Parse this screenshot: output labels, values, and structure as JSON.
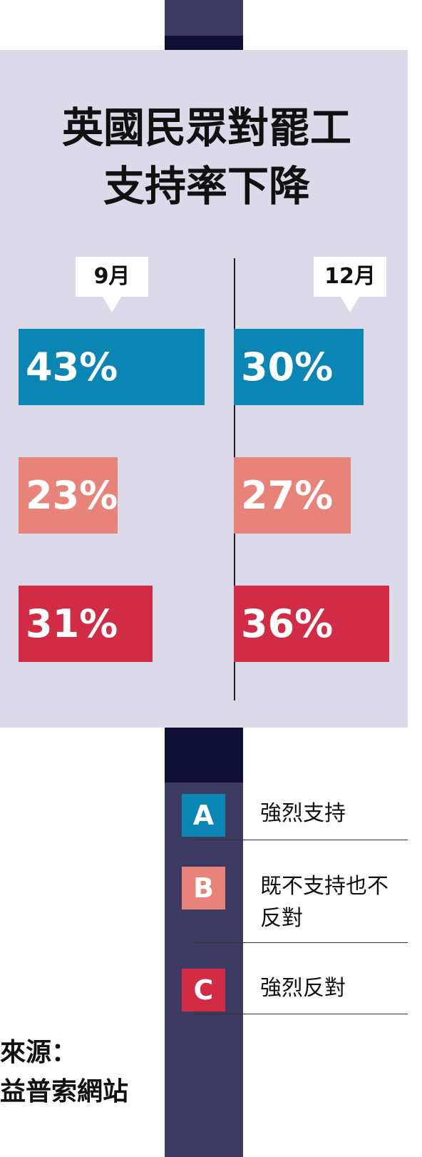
{
  "chart_data": {
    "type": "bar",
    "title": [
      "英國民眾對罷工",
      "支持率下降"
    ],
    "groups": [
      "9月",
      "12月"
    ],
    "series": [
      {
        "name": "強烈支持",
        "letter": "A",
        "color": "#0a86b4",
        "values": [
          43,
          30
        ],
        "value_labels": [
          "43%",
          "30%"
        ]
      },
      {
        "name": "既不支持也不反對",
        "letter": "B",
        "color": "#e8837a",
        "values": [
          23,
          27
        ],
        "value_labels": [
          "23%",
          "27%"
        ]
      },
      {
        "name": "強烈反對",
        "letter": "C",
        "color": "#d12b45",
        "values": [
          31,
          36
        ],
        "value_labels": [
          "31%",
          "36%"
        ]
      }
    ],
    "source": [
      "來源：",
      "益普索網站"
    ]
  }
}
